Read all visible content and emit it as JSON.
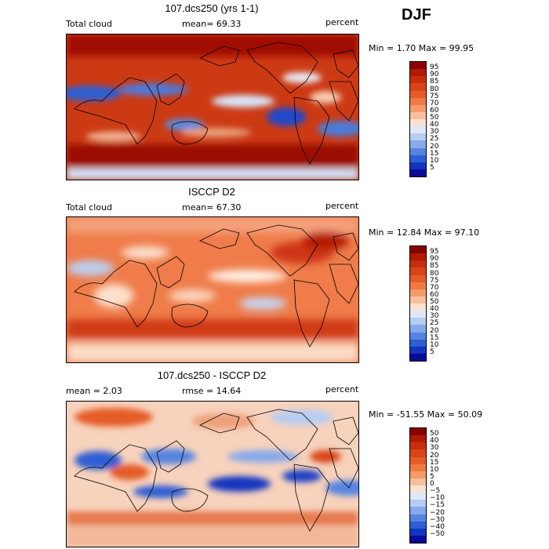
{
  "season": "DJF",
  "panels": [
    {
      "title": "107.dcs250 (yrs 1-1)",
      "left_label": "Total cloud",
      "mid_label": "mean=  69.33",
      "right_label": "percent",
      "minmax": "Min =    1.70 Max =   99.95",
      "colorbar_labels": [
        "95",
        "90",
        "85",
        "80",
        "75",
        "70",
        "60",
        "50",
        "40",
        "30",
        "25",
        "20",
        "15",
        "10",
        "5"
      ],
      "palette": "model"
    },
    {
      "title": "ISCCP D2",
      "left_label": "Total cloud",
      "mid_label": "mean=  67.30",
      "right_label": "percent",
      "minmax": "Min =  12.84 Max =   97.10",
      "colorbar_labels": [
        "95",
        "90",
        "85",
        "80",
        "75",
        "70",
        "60",
        "50",
        "40",
        "30",
        "25",
        "20",
        "15",
        "10",
        "5"
      ],
      "palette": "model"
    },
    {
      "title": "107.dcs250 - ISCCP D2",
      "left_label": "mean =    2.03",
      "mid_label": "rmse =   14.64",
      "right_label": "percent",
      "minmax": "Min = -51.55 Max =   50.09",
      "colorbar_labels": [
        "50",
        "40",
        "30",
        "20",
        "15",
        "10",
        "5",
        "0",
        "−5",
        "−10",
        "−15",
        "−20",
        "−30",
        "−40",
        "−50"
      ],
      "palette": "diff"
    }
  ],
  "colors": {
    "levels16": [
      "#8b0000",
      "#b11a04",
      "#c82d0c",
      "#d94418",
      "#e55c28",
      "#ef7a42",
      "#f59a6a",
      "#f8bf9c",
      "#fbe2d0",
      "#dde9f8",
      "#b7cdf2",
      "#86a9ea",
      "#5584e0",
      "#2e5ed3",
      "#1234c0",
      "#0a0a96"
    ]
  }
}
